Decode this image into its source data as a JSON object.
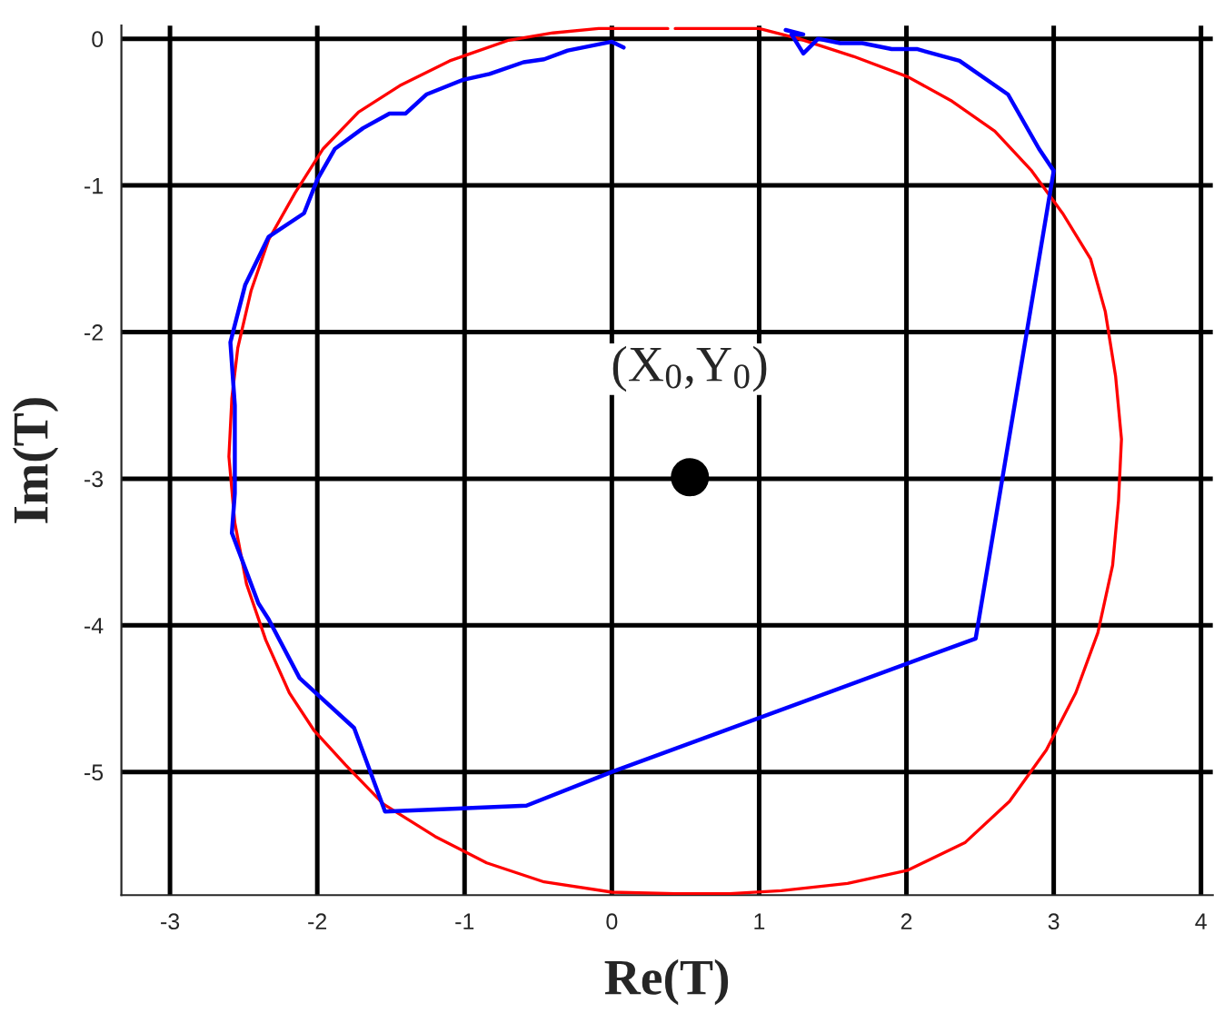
{
  "chart_data": {
    "type": "line",
    "xlabel": "Re(T)",
    "ylabel": "Im(T)",
    "xlim": [
      -3.33,
      4.08
    ],
    "ylim": [
      -5.84,
      0.09
    ],
    "xticks": [
      -3,
      -2,
      -1,
      0,
      1,
      2,
      3,
      4
    ],
    "yticks": [
      -5,
      -4,
      -3,
      -2,
      -1,
      0
    ],
    "grid": true,
    "legend": false,
    "series": [
      {
        "color": "#ff0000",
        "x": [
          0.43,
          1.0,
          1.27,
          1.64,
          2.01,
          2.3,
          2.6,
          2.85,
          3.06,
          3.25,
          3.35,
          3.42,
          3.46,
          3.44,
          3.4,
          3.3,
          3.15,
          2.95,
          2.7,
          2.4,
          2.01,
          1.6,
          1.15,
          0.8,
          0.43,
          0.0,
          -0.46,
          -0.85,
          -1.2,
          -1.55,
          -1.81,
          -2.02,
          -2.19,
          -2.35,
          -2.48,
          -2.56,
          -2.6,
          -2.58,
          -2.54,
          -2.45,
          -2.33,
          -2.15,
          -1.96,
          -1.72,
          -1.44,
          -1.1,
          -0.7,
          -0.4,
          -0.09,
          0.2,
          0.38
        ],
        "values": [
          0.07,
          0.07,
          0.0,
          -0.12,
          -0.26,
          -0.42,
          -0.63,
          -0.9,
          -1.19,
          -1.5,
          -1.86,
          -2.3,
          -2.73,
          -3.15,
          -3.59,
          -4.05,
          -4.46,
          -4.85,
          -5.2,
          -5.48,
          -5.67,
          -5.76,
          -5.81,
          -5.83,
          -5.83,
          -5.82,
          -5.75,
          -5.62,
          -5.44,
          -5.22,
          -4.95,
          -4.72,
          -4.46,
          -4.1,
          -3.72,
          -3.3,
          -2.85,
          -2.45,
          -2.11,
          -1.72,
          -1.37,
          -1.05,
          -0.75,
          -0.5,
          -0.32,
          -0.15,
          -0.01,
          0.04,
          0.07,
          0.07,
          0.07
        ]
      },
      {
        "color": "#0000ff",
        "x": [
          0.08,
          0.0,
          -0.1,
          -0.3,
          -0.46,
          -0.6,
          -0.83,
          -1.01,
          -1.26,
          -1.4,
          -1.51,
          -1.69,
          -1.88,
          -2.0,
          -2.09,
          -2.33,
          -2.49,
          -2.59,
          -2.56,
          -2.56,
          -2.58,
          -2.4,
          -2.33,
          -2.12,
          -1.75,
          -1.54,
          -0.58,
          0.0,
          2.47,
          3.0,
          2.9,
          2.69,
          2.36,
          2.07,
          1.9,
          1.7,
          1.55,
          1.4,
          1.3,
          1.22,
          1.3,
          1.18
        ],
        "values": [
          -0.06,
          -0.02,
          -0.04,
          -0.08,
          -0.14,
          -0.16,
          -0.24,
          -0.28,
          -0.38,
          -0.51,
          -0.51,
          -0.61,
          -0.75,
          -0.96,
          -1.19,
          -1.35,
          -1.68,
          -2.07,
          -2.5,
          -3.1,
          -3.37,
          -3.85,
          -3.96,
          -4.36,
          -4.7,
          -5.27,
          -5.23,
          -5.0,
          -4.09,
          -0.9,
          -0.75,
          -0.38,
          -0.15,
          -0.07,
          -0.07,
          -0.03,
          -0.03,
          0.0,
          -0.1,
          0.03,
          0.03,
          0.06
        ]
      },
      {
        "type": "scatter",
        "color": "#000000",
        "marker": "circle",
        "x": [
          0.53
        ],
        "values": [
          -2.99
        ]
      }
    ],
    "annotations": [
      {
        "text": "(X$_{0}$,Y$_{0}$)",
        "x": 0.53,
        "y": -2.99
      }
    ]
  }
}
